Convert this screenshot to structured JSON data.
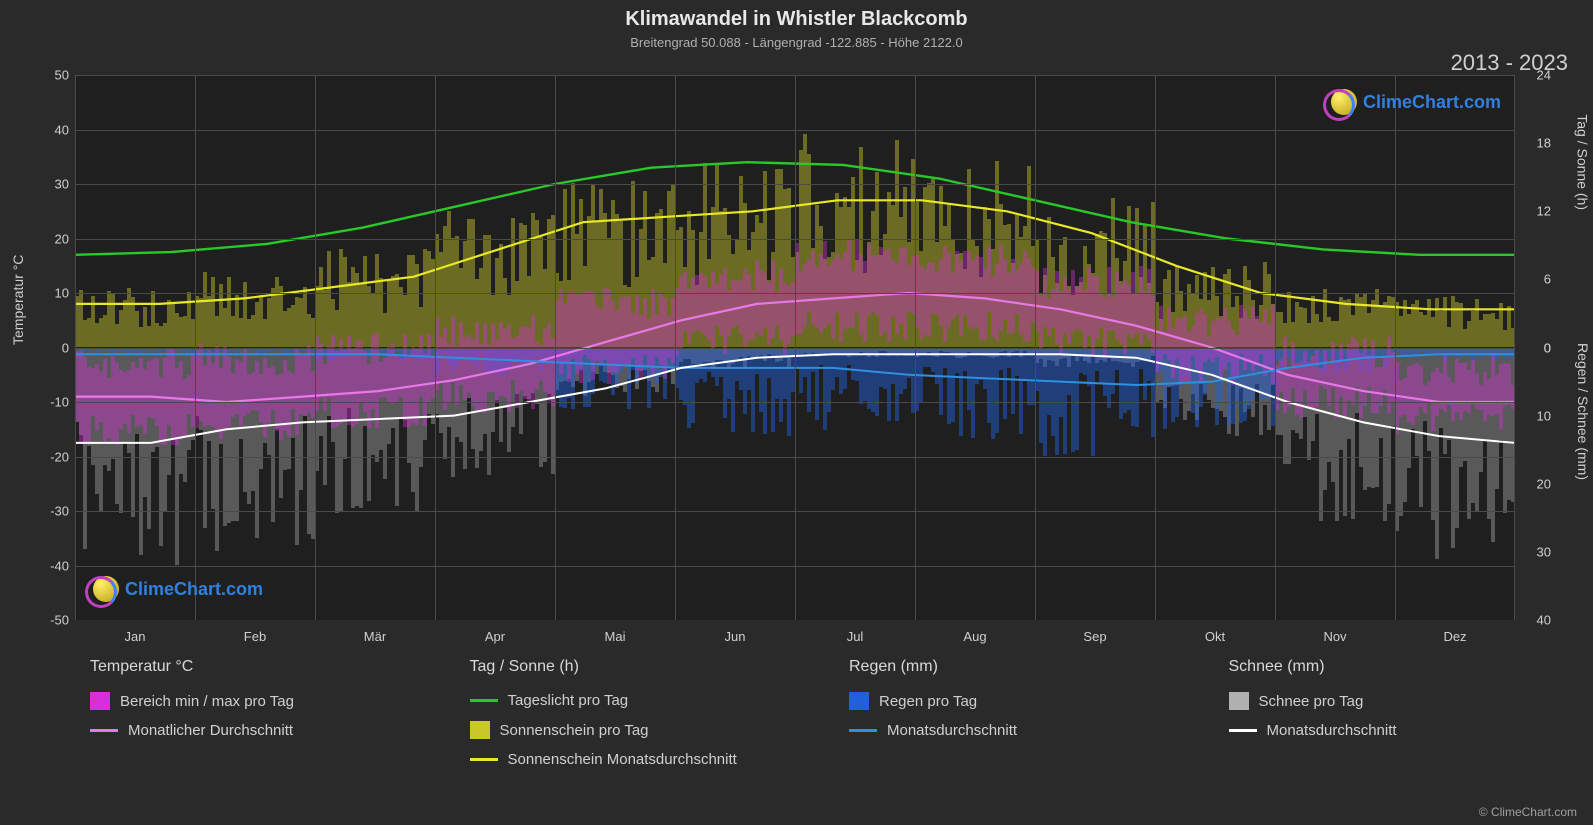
{
  "title": "Klimawandel in Whistler Blackcomb",
  "subtitle": "Breitengrad 50.088 - Längengrad -122.885 - Höhe 2122.0",
  "year_range": "2013 - 2023",
  "brand": "ClimeChart.com",
  "copyright": "© ClimeChart.com",
  "chart": {
    "background": "#1f1f1f",
    "page_background": "#2a2a2a",
    "grid_color": "#4a4a4a",
    "font_color": "#d0d0d0",
    "left_axis": {
      "title": "Temperatur °C",
      "min": -50,
      "max": 50,
      "step": 10,
      "labels": [
        "-50",
        "-40",
        "-30",
        "-20",
        "-10",
        "0",
        "10",
        "20",
        "30",
        "40",
        "50"
      ]
    },
    "right_axis_top": {
      "title": "Tag / Sonne (h)",
      "min": 0,
      "max": 24,
      "step": 6,
      "labels": [
        "0",
        "6",
        "12",
        "18",
        "24"
      ]
    },
    "right_axis_bottom": {
      "title": "Regen / Schnee (mm)",
      "min": 0,
      "max": 40,
      "step": 10,
      "labels": [
        "0",
        "10",
        "20",
        "30",
        "40"
      ]
    },
    "x_axis": {
      "labels": [
        "Jan",
        "Feb",
        "Mär",
        "Apr",
        "Mai",
        "Jun",
        "Jul",
        "Aug",
        "Sep",
        "Okt",
        "Nov",
        "Dez"
      ]
    },
    "series_colors": {
      "temp_range": "#d82fd8",
      "temp_avg": "#e878e8",
      "daylight": "#28c828",
      "sunshine_bars": "#c8c828",
      "sunshine_avg": "#e8e828",
      "rain_bars": "#2060d8",
      "rain_avg": "#3090e0",
      "snow_bars": "#b0b0b0",
      "snow_avg": "#ffffff"
    },
    "opacity": {
      "bars": 0.45
    },
    "lines": {
      "daylight": [
        17,
        17.5,
        19,
        22,
        26,
        30,
        33,
        34,
        33.5,
        31,
        27,
        23,
        20,
        18,
        17,
        17
      ],
      "sunshine": [
        8,
        8,
        9,
        11,
        13,
        18,
        23,
        24,
        25,
        27,
        27,
        25,
        21,
        15,
        10,
        8,
        7,
        7
      ],
      "temp_avg": [
        -9,
        -9,
        -10,
        -9,
        -8,
        -6,
        -3,
        1,
        5,
        8,
        9,
        10,
        9,
        7,
        4,
        0,
        -5,
        -8,
        -10,
        -10
      ],
      "rain_avg": [
        1,
        1,
        1,
        1,
        1,
        1.5,
        2,
        2.5,
        3,
        3,
        3,
        4,
        4.5,
        5,
        5.5,
        5,
        3,
        1.5,
        1,
        1
      ],
      "snow_avg": [
        14,
        14,
        12,
        11,
        10.5,
        10,
        8,
        6,
        3,
        1.5,
        1,
        1,
        1,
        1,
        1.5,
        4,
        8,
        11,
        13,
        14
      ]
    },
    "monthly_bars": {
      "sunshine_h": [
        3.5,
        4.5,
        6,
        8,
        10,
        11,
        13,
        12,
        9,
        5,
        3.5,
        3
      ],
      "snow_mm": [
        22,
        20,
        17,
        13,
        5,
        2,
        1,
        1,
        2,
        9,
        17,
        21
      ],
      "rain_mm": [
        0.5,
        0.5,
        1,
        2,
        5,
        7,
        6.5,
        7,
        8,
        6,
        2,
        1
      ],
      "temp_min": [
        -15,
        -14,
        -12,
        -9,
        -4,
        1,
        4,
        4,
        1,
        -4,
        -10,
        -13
      ],
      "temp_max": [
        -3,
        -2,
        0,
        3,
        8,
        13,
        17,
        16,
        12,
        5,
        -1,
        -4
      ]
    }
  },
  "legend": {
    "groups": [
      {
        "header": "Temperatur °C",
        "items": [
          {
            "type": "swatch",
            "color": "#d82fd8",
            "label": "Bereich min / max pro Tag"
          },
          {
            "type": "line",
            "color": "#e878e8",
            "label": "Monatlicher Durchschnitt"
          }
        ]
      },
      {
        "header": "Tag / Sonne (h)",
        "items": [
          {
            "type": "line",
            "color": "#28c828",
            "label": "Tageslicht pro Tag"
          },
          {
            "type": "swatch",
            "color": "#c8c828",
            "label": "Sonnenschein pro Tag"
          },
          {
            "type": "line",
            "color": "#e8e828",
            "label": "Sonnenschein Monatsdurchschnitt"
          }
        ]
      },
      {
        "header": "Regen (mm)",
        "items": [
          {
            "type": "swatch",
            "color": "#2060d8",
            "label": "Regen pro Tag"
          },
          {
            "type": "line",
            "color": "#3090e0",
            "label": "Monatsdurchschnitt"
          }
        ]
      },
      {
        "header": "Schnee (mm)",
        "items": [
          {
            "type": "swatch",
            "color": "#b0b0b0",
            "label": "Schnee pro Tag"
          },
          {
            "type": "line",
            "color": "#ffffff",
            "label": "Monatsdurchschnitt"
          }
        ]
      }
    ]
  }
}
